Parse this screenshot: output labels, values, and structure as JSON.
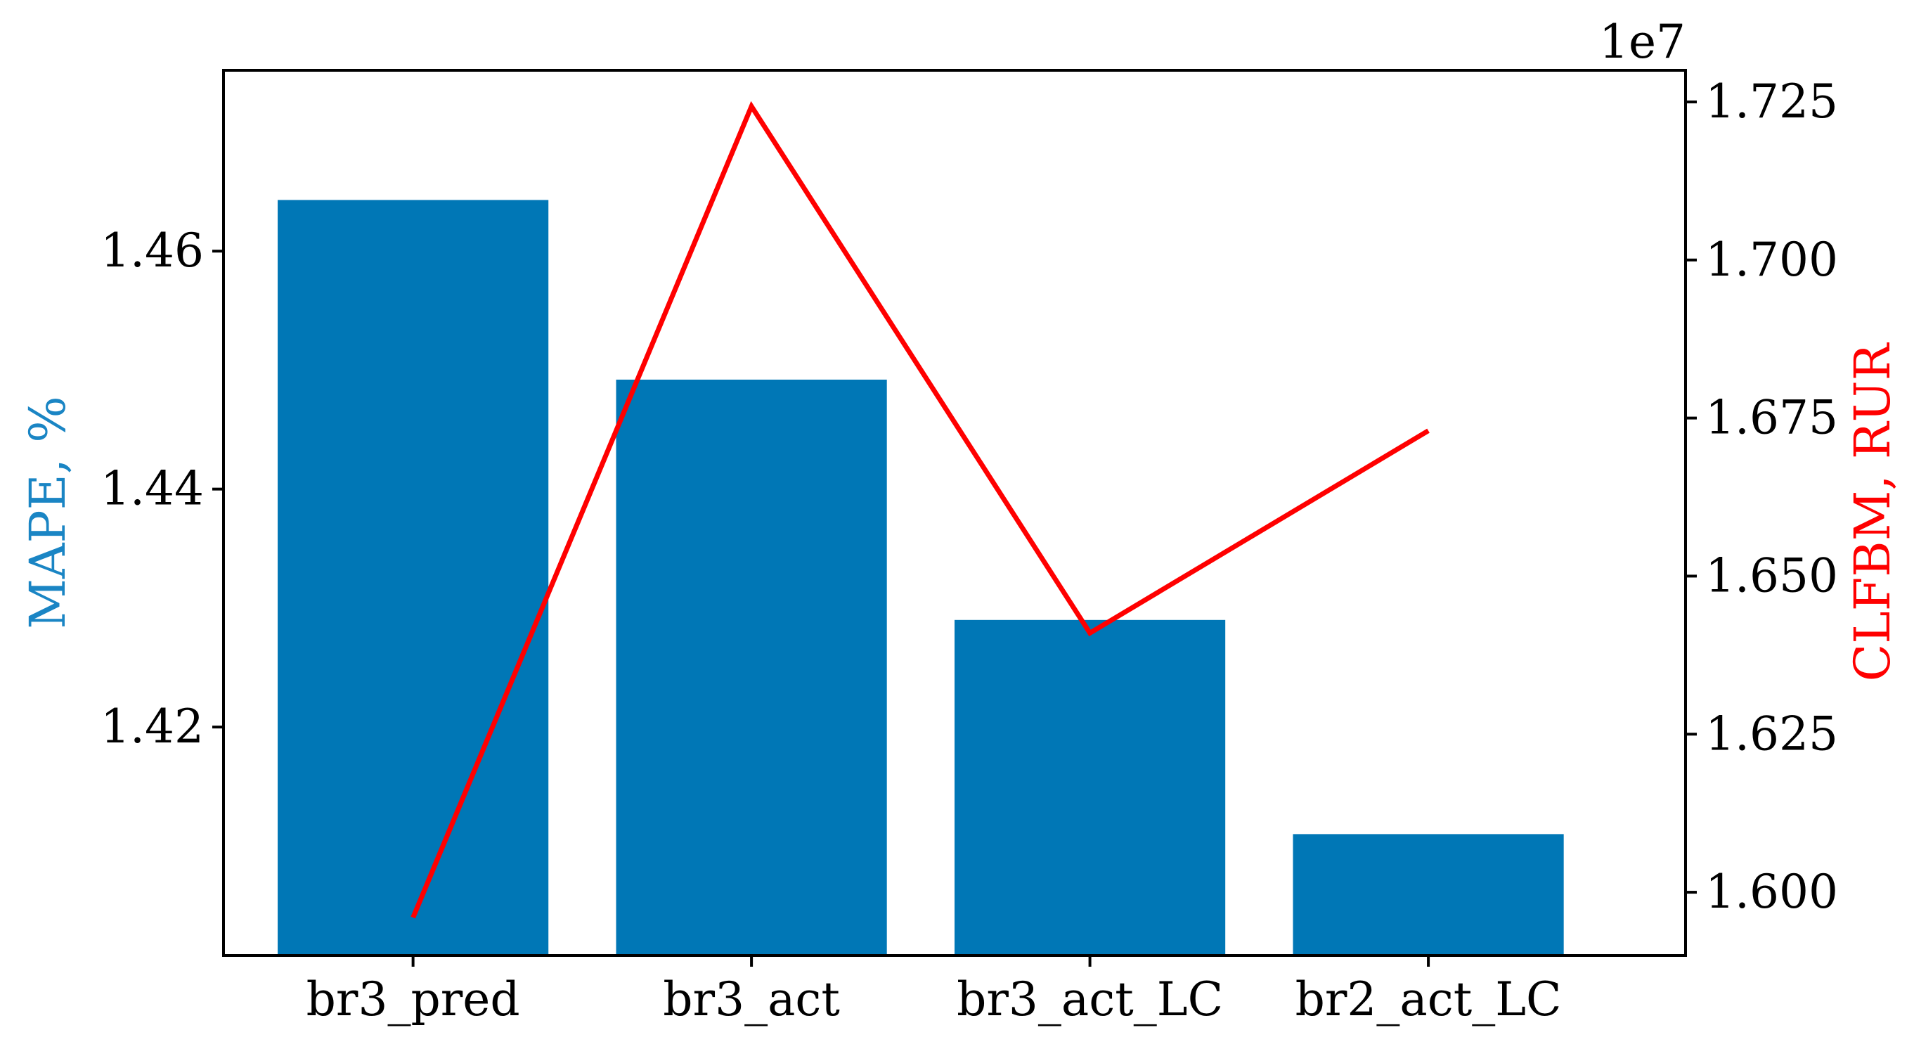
{
  "chart_data": {
    "type": "bar",
    "categories": [
      "br3_pred",
      "br3_act",
      "br3_act_LC",
      "br2_act_LC"
    ],
    "series": [
      {
        "axis": "left",
        "kind": "bar",
        "values": [
          1.4643,
          1.4492,
          1.429,
          1.411
        ],
        "color": "#0077b6"
      },
      {
        "axis": "right",
        "kind": "line",
        "values": [
          15960000,
          17243000,
          16410000,
          16730000
        ],
        "color": "#ff0000"
      }
    ],
    "ylabel": "MAPE, %",
    "ylabel_color": "#1a85c4",
    "ylim": [
      1.4008,
      1.4752
    ],
    "yticks": [
      "1.42",
      "1.44",
      "1.46"
    ],
    "ylabel_right": "CLFBM, RUR",
    "ylabel_right_color": "#ff0000",
    "ylim_right": [
      15900000,
      17300000
    ],
    "yticks_right": [
      "1.600",
      "1.625",
      "1.650",
      "1.675",
      "1.700",
      "1.725"
    ],
    "right_axis_offset": "1e7",
    "grid": false
  }
}
